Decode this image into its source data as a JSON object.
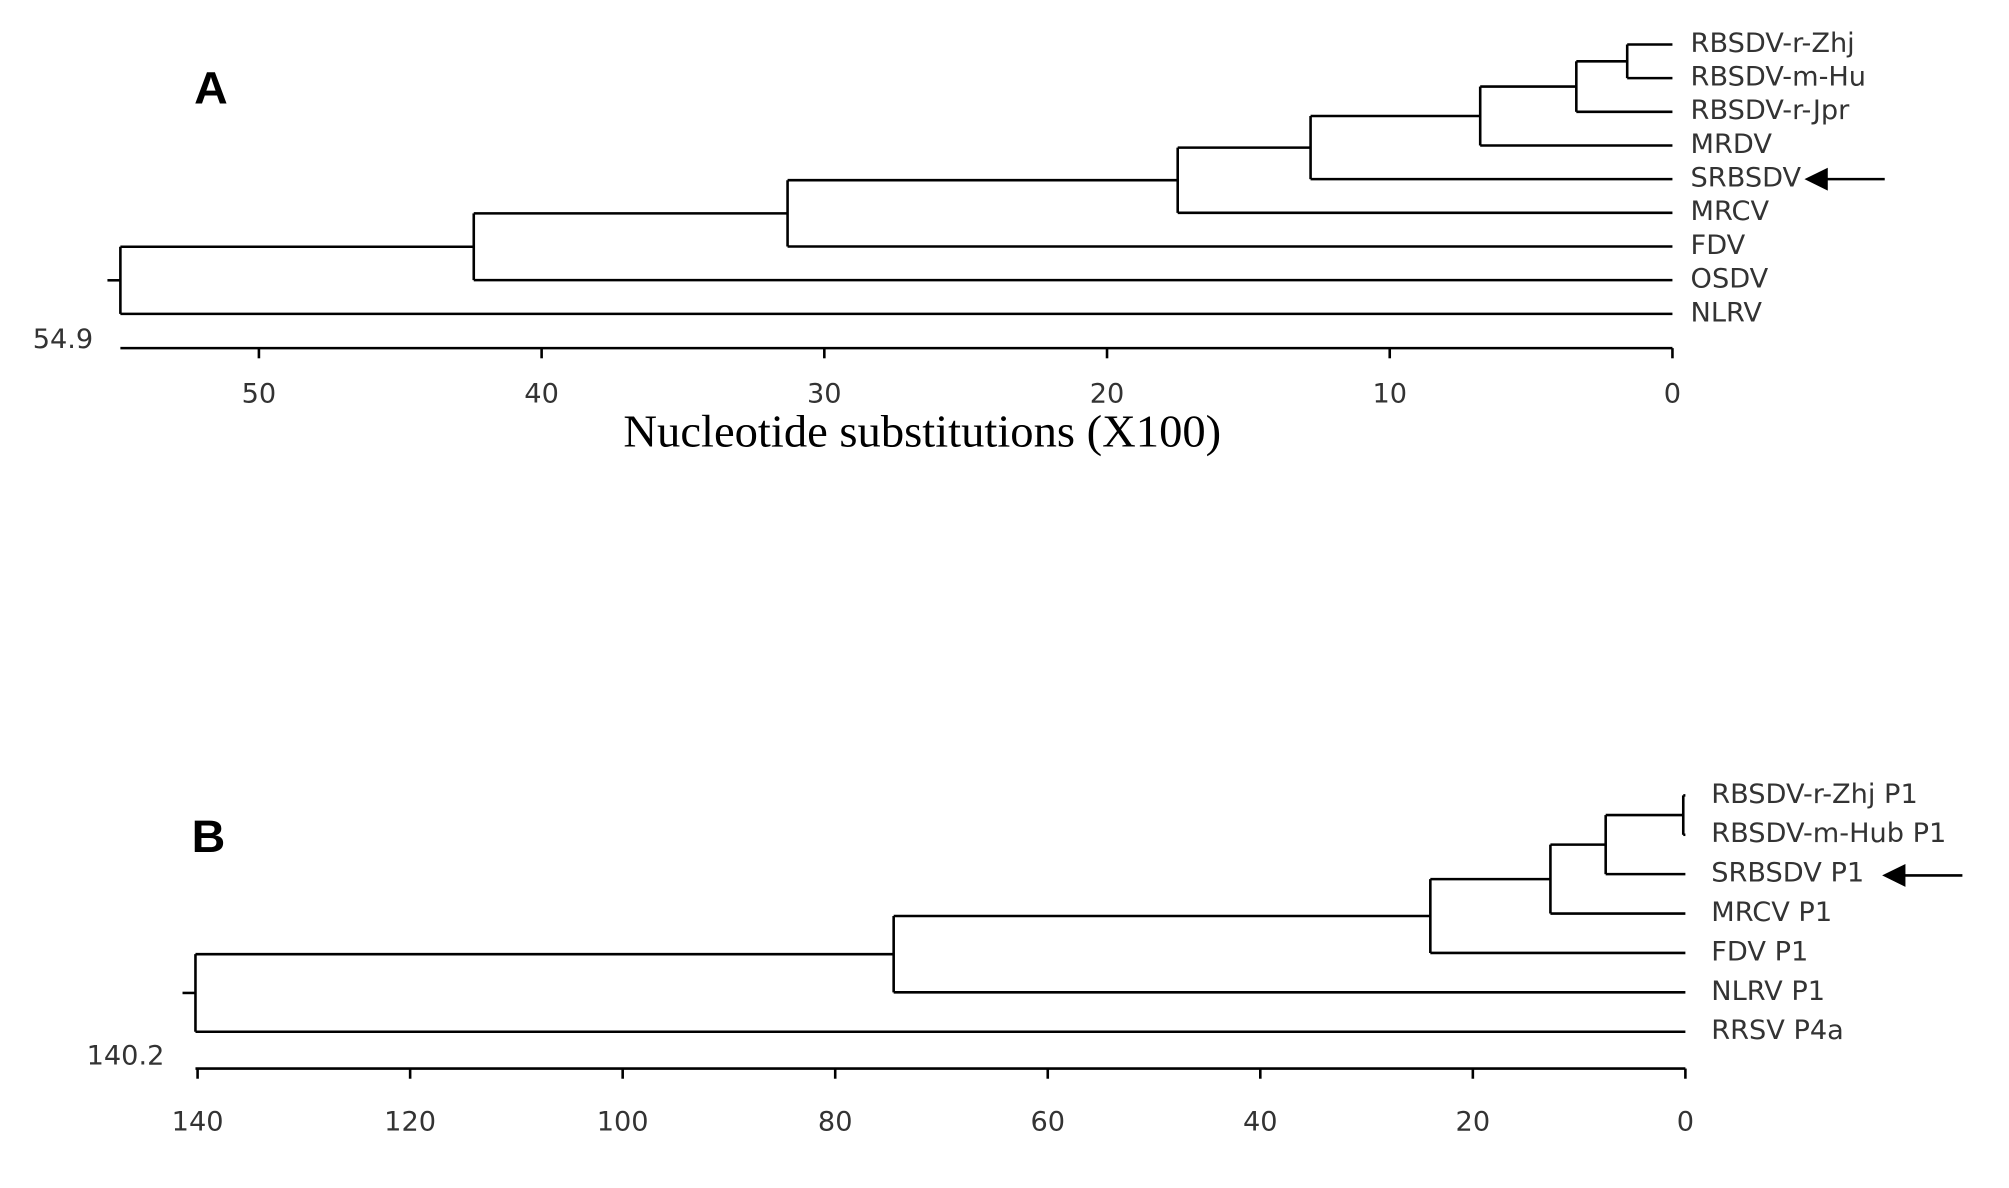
{
  "chart_data": [
    {
      "type": "dendrogram",
      "panel": "A",
      "leaves": [
        "RBSDV-r-Zhj",
        "RBSDV-m-Hu",
        "RBSDV-r-Jpr",
        "MRDV",
        "SRBSDV",
        "MRCV",
        "FDV",
        "OSDV",
        "NLRV"
      ],
      "merge_heights": [
        1.6,
        3.4,
        6.8,
        12.8,
        17.5,
        31.3,
        42.4,
        54.9
      ],
      "xlim": [
        54.9,
        0
      ],
      "xticks": [
        50,
        40,
        30,
        20,
        10,
        0
      ],
      "x_label": "Nucleotide substitutions (X100)"
    },
    {
      "type": "dendrogram",
      "panel": "B",
      "leaves": [
        "RBSDV-r-Zhj P1",
        "RBSDV-m-Hub P1",
        "SRBSDV P1",
        "MRCV P1",
        "FDV P1",
        "NLRV P1",
        "RRSV P4a"
      ],
      "merge_heights": [
        0.2,
        7.5,
        12.7,
        24,
        74.5,
        140.2
      ],
      "xlim": [
        140.2,
        0
      ],
      "xticks": [
        140,
        120,
        100,
        80,
        60,
        40,
        20,
        0
      ]
    }
  ]
}
